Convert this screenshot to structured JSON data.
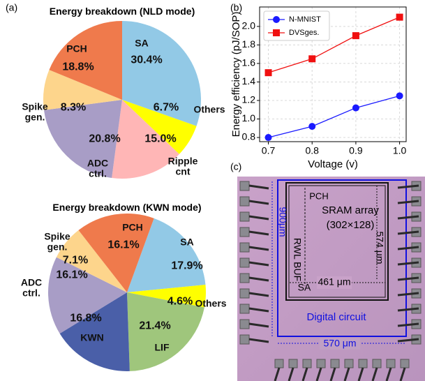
{
  "panel_labels": [
    "(a)",
    "(b)",
    "(c)"
  ],
  "chart_data": [
    {
      "type": "pie",
      "title": "Energy breakdown (NLD mode)",
      "categories": [
        "SA",
        "Others",
        "Ripple cnt",
        "ADC ctrl.",
        "Spike gen.",
        "PCH"
      ],
      "values": [
        30.4,
        6.7,
        15.0,
        20.8,
        8.3,
        18.8
      ],
      "value_labels": [
        "30.4%",
        "6.7%",
        "15.0%",
        "20.8%",
        "8.3%",
        "18.8%"
      ],
      "colors": [
        "#92c9e6",
        "#ffff00",
        "#ffb6b6",
        "#a89dc6",
        "#fdd58c",
        "#ef7a4c"
      ]
    },
    {
      "type": "line",
      "x_label": "Voltage (v)",
      "y_label": "Energy efficiency (pJ/SOP)",
      "x": [
        0.7,
        0.8,
        0.9,
        {
          "value": 1,
          "label": "1.0"
        }
      ],
      "xlim": [
        0.68,
        1.015
      ],
      "ylim": [
        0.755,
        2.21
      ],
      "xticks": [
        0.7,
        0.8,
        0.9,
        {
          "value": 1,
          "label": "1.0"
        }
      ],
      "yticks": [
        0.8,
        {
          "value": 1,
          "label": "1.0"
        },
        1.2,
        1.4,
        1.6,
        1.8,
        {
          "value": 2,
          "label": "2.0"
        }
      ],
      "grid": true,
      "legend": "upper-left",
      "series": [
        {
          "name": "N-MNIST",
          "color": "#1a1aff",
          "marker": "circle",
          "values": [
            0.8,
            0.92,
            1.12,
            1.25
          ]
        },
        {
          "name": "DVSges.",
          "color": "#f01010",
          "marker": "square",
          "values": [
            1.5,
            1.65,
            1.9,
            2.1
          ]
        }
      ]
    },
    {
      "type": "pie",
      "title": "Energy breakdown (KWN mode)",
      "categories": [
        "SA",
        "Others",
        "LIF",
        "KWN",
        "ADC ctrl.",
        "Spike gen.",
        "PCH"
      ],
      "values": [
        17.9,
        4.6,
        21.4,
        16.8,
        16.1,
        7.1,
        16.1
      ],
      "value_labels": [
        "17.9%",
        "4.6%",
        "21.4%",
        "16.8%",
        "16.1%",
        "7.1%",
        "16.1%"
      ],
      "colors": [
        "#92c9e6",
        "#ffff00",
        "#9fc67c",
        "#4a5fa8",
        "#a89dc6",
        "#fdd58c",
        "#ef7a4c"
      ]
    }
  ],
  "micrograph": {
    "pch": "PCH",
    "sram": "SRAM array",
    "size": "(302×128)",
    "height": "574 μm",
    "rwl": "RWL BUF",
    "sa": "SA",
    "width": "461 μm",
    "digital": "Digital circuit",
    "die_height": "900μm",
    "die_width": "570 μm"
  }
}
